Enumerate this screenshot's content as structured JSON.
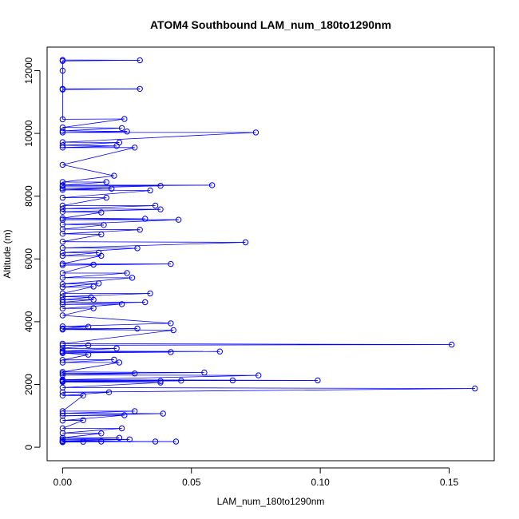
{
  "chart_data": {
    "type": "line",
    "title": "ATOM4 Southbound LAM_num_180to1290nm",
    "xlabel": "LAM_num_180to1290nm",
    "ylabel": "Altitude (m)",
    "xlim": [
      -0.006,
      0.1675
    ],
    "ylim": [
      -430,
      12750
    ],
    "xticks": [
      0.0,
      0.05,
      0.1,
      0.15
    ],
    "xtick_labels": [
      "0.00",
      "0.05",
      "0.10",
      "0.15"
    ],
    "yticks": [
      0,
      2000,
      4000,
      6000,
      8000,
      10000,
      12000
    ],
    "ytick_labels": [
      "0",
      "2000",
      "4000",
      "6000",
      "8000",
      "10000",
      "12000"
    ],
    "grid": false,
    "colors": {
      "series": "#0000ff",
      "axes": "#000000"
    },
    "series": [
      {
        "marker": "open-circle",
        "points": [
          [
            0.0,
            12340
          ],
          [
            0.03,
            12330
          ],
          [
            0.0,
            12310
          ],
          [
            0.0,
            12000
          ],
          [
            0.0,
            11420
          ],
          [
            0.03,
            11420
          ],
          [
            0.0,
            11400
          ],
          [
            0.0,
            10450
          ],
          [
            0.024,
            10460
          ],
          [
            0.0,
            10190
          ],
          [
            0.023,
            10170
          ],
          [
            0.0,
            10080
          ],
          [
            0.025,
            10060
          ],
          [
            0.0,
            10030
          ],
          [
            0.075,
            10030
          ],
          [
            0.0,
            9720
          ],
          [
            0.022,
            9710
          ],
          [
            0.0,
            9620
          ],
          [
            0.021,
            9600
          ],
          [
            0.0,
            9550
          ],
          [
            0.028,
            9550
          ],
          [
            0.0,
            9000
          ],
          [
            0.02,
            8650
          ],
          [
            0.0,
            8450
          ],
          [
            0.017,
            8450
          ],
          [
            0.0,
            8350
          ],
          [
            0.058,
            8350
          ],
          [
            0.0,
            8320
          ],
          [
            0.038,
            8330
          ],
          [
            0.0,
            8250
          ],
          [
            0.019,
            8240
          ],
          [
            0.0,
            8200
          ],
          [
            0.034,
            8180
          ],
          [
            0.0,
            7950
          ],
          [
            0.017,
            7950
          ],
          [
            0.0,
            7700
          ],
          [
            0.036,
            7700
          ],
          [
            0.0,
            7600
          ],
          [
            0.038,
            7580
          ],
          [
            0.0,
            7500
          ],
          [
            0.015,
            7480
          ],
          [
            0.0,
            7300
          ],
          [
            0.032,
            7280
          ],
          [
            0.0,
            7250
          ],
          [
            0.045,
            7250
          ],
          [
            0.0,
            7100
          ],
          [
            0.016,
            7080
          ],
          [
            0.0,
            6950
          ],
          [
            0.03,
            6930
          ],
          [
            0.0,
            6800
          ],
          [
            0.015,
            6780
          ],
          [
            0.0,
            6550
          ],
          [
            0.071,
            6530
          ],
          [
            0.0,
            6350
          ],
          [
            0.029,
            6340
          ],
          [
            0.0,
            6200
          ],
          [
            0.014,
            6200
          ],
          [
            0.0,
            6100
          ],
          [
            0.015,
            6100
          ],
          [
            0.0,
            5850
          ],
          [
            0.042,
            5840
          ],
          [
            0.0,
            5800
          ],
          [
            0.012,
            5820
          ],
          [
            0.0,
            5550
          ],
          [
            0.025,
            5550
          ],
          [
            0.0,
            5400
          ],
          [
            0.027,
            5400
          ],
          [
            0.0,
            5200
          ],
          [
            0.014,
            5220
          ],
          [
            0.0,
            5100
          ],
          [
            0.012,
            5120
          ],
          [
            0.0,
            4900
          ],
          [
            0.034,
            4900
          ],
          [
            0.0,
            4800
          ],
          [
            0.011,
            4780
          ],
          [
            0.0,
            4700
          ],
          [
            0.012,
            4700
          ],
          [
            0.0,
            4620
          ],
          [
            0.032,
            4620
          ],
          [
            0.0,
            4550
          ],
          [
            0.023,
            4560
          ],
          [
            0.0,
            4420
          ],
          [
            0.012,
            4430
          ],
          [
            0.0,
            4200
          ],
          [
            0.042,
            3950
          ],
          [
            0.0,
            3850
          ],
          [
            0.01,
            3840
          ],
          [
            0.0,
            3780
          ],
          [
            0.029,
            3780
          ],
          [
            0.0,
            3750
          ],
          [
            0.043,
            3730
          ],
          [
            0.0,
            3300
          ],
          [
            0.151,
            3270
          ],
          [
            0.0,
            3250
          ],
          [
            0.01,
            3250
          ],
          [
            0.0,
            3150
          ],
          [
            0.021,
            3150
          ],
          [
            0.0,
            3060
          ],
          [
            0.061,
            3050
          ],
          [
            0.0,
            3030
          ],
          [
            0.042,
            3030
          ],
          [
            0.0,
            3000
          ],
          [
            0.01,
            2950
          ],
          [
            0.0,
            2780
          ],
          [
            0.02,
            2790
          ],
          [
            0.0,
            2700
          ],
          [
            0.022,
            2700
          ],
          [
            0.0,
            2400
          ],
          [
            0.055,
            2380
          ],
          [
            0.0,
            2350
          ],
          [
            0.028,
            2350
          ],
          [
            0.0,
            2300
          ],
          [
            0.076,
            2290
          ],
          [
            0.0,
            2150
          ],
          [
            0.099,
            2130
          ],
          [
            0.0,
            2120
          ],
          [
            0.066,
            2130
          ],
          [
            0.0,
            2110
          ],
          [
            0.038,
            2110
          ],
          [
            0.0,
            2100
          ],
          [
            0.046,
            2120
          ],
          [
            0.0,
            2080
          ],
          [
            0.038,
            2060
          ],
          [
            0.0,
            1900
          ],
          [
            0.16,
            1870
          ],
          [
            0.0,
            1750
          ],
          [
            0.018,
            1750
          ],
          [
            0.0,
            1650
          ],
          [
            0.008,
            1650
          ],
          [
            0.0,
            1150
          ],
          [
            0.028,
            1150
          ],
          [
            0.0,
            1080
          ],
          [
            0.039,
            1070
          ],
          [
            0.0,
            1000
          ],
          [
            0.024,
            1020
          ],
          [
            0.0,
            850
          ],
          [
            0.008,
            860
          ],
          [
            0.0,
            600
          ],
          [
            0.023,
            600
          ],
          [
            0.0,
            450
          ],
          [
            0.015,
            440
          ],
          [
            0.0,
            300
          ],
          [
            0.022,
            300
          ],
          [
            0.0,
            250
          ],
          [
            0.026,
            250
          ],
          [
            0.0,
            200
          ],
          [
            0.036,
            180
          ],
          [
            0.0,
            190
          ],
          [
            0.044,
            180
          ],
          [
            0.0,
            170
          ],
          [
            0.015,
            180
          ],
          [
            0.0,
            175
          ],
          [
            0.008,
            175
          ],
          [
            0.0,
            160
          ]
        ]
      }
    ]
  }
}
